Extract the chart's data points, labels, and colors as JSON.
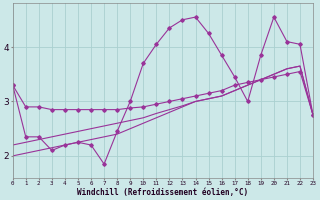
{
  "xlabel": "Windchill (Refroidissement éolien,°C)",
  "bg_color": "#cce8e8",
  "grid_color": "#aad0d0",
  "line_color": "#993399",
  "x_hours": [
    0,
    1,
    2,
    3,
    4,
    5,
    6,
    7,
    8,
    9,
    10,
    11,
    12,
    13,
    14,
    15,
    16,
    17,
    18,
    19,
    20,
    21,
    22,
    23
  ],
  "y_main": [
    3.3,
    2.35,
    2.35,
    2.1,
    2.2,
    2.25,
    2.2,
    1.85,
    2.45,
    3.0,
    3.7,
    4.05,
    4.35,
    4.5,
    4.55,
    4.25,
    3.85,
    3.45,
    3.0,
    3.85,
    4.55,
    4.1,
    4.05,
    2.75
  ],
  "y_flat": [
    3.3,
    2.9,
    2.9,
    2.85,
    2.85,
    2.85,
    2.85,
    2.85,
    2.85,
    2.88,
    2.9,
    2.95,
    3.0,
    3.05,
    3.1,
    3.15,
    3.2,
    3.3,
    3.35,
    3.4,
    3.45,
    3.5,
    3.55,
    2.75
  ],
  "y_lin1": [
    2.2,
    2.25,
    2.3,
    2.35,
    2.4,
    2.45,
    2.5,
    2.55,
    2.6,
    2.65,
    2.7,
    2.78,
    2.85,
    2.92,
    3.0,
    3.05,
    3.1,
    3.2,
    3.3,
    3.4,
    3.5,
    3.6,
    3.65,
    2.75
  ],
  "y_lin2": [
    2.0,
    2.05,
    2.1,
    2.15,
    2.2,
    2.25,
    2.3,
    2.35,
    2.4,
    2.5,
    2.6,
    2.7,
    2.8,
    2.9,
    3.0,
    3.05,
    3.1,
    3.2,
    3.3,
    3.4,
    3.5,
    3.6,
    3.65,
    2.75
  ],
  "ylim": [
    1.6,
    4.8
  ],
  "yticks": [
    2,
    3,
    4
  ],
  "xlim": [
    0,
    23
  ]
}
